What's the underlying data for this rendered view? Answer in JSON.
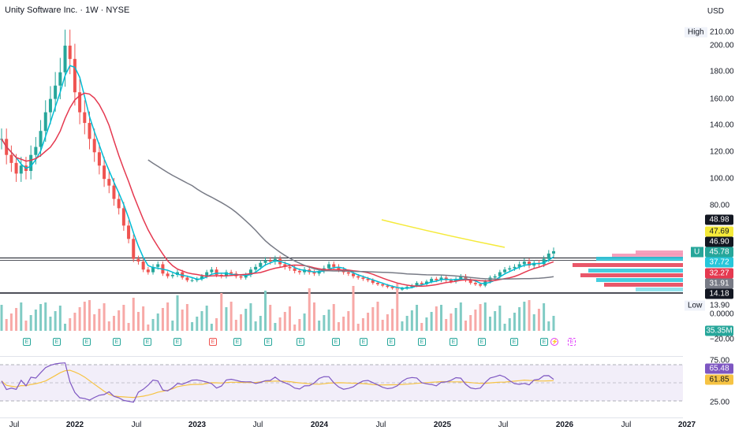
{
  "header": {
    "title": "Unity Software Inc. · 1W · NYSE",
    "currency": "USD"
  },
  "price_axis": {
    "ticks": [
      "210.00",
      "200.00",
      "180.00",
      "160.00",
      "140.00",
      "120.00",
      "100.00",
      "80.00",
      "0.0000",
      "−20.00"
    ],
    "high_label": "High",
    "low_label": "Low",
    "low_value": "13.90",
    "u_badge": "U",
    "tags": {
      "t4898": "48.98",
      "t4769": "47.69",
      "t4690": "46.90",
      "t4578": "45.78",
      "t3772": "37.72",
      "t3227": "32.27",
      "t3191": "31.91",
      "t1418": "14.18",
      "vol": "35.35M"
    }
  },
  "rsi_axis": {
    "ticks": [
      "75.00",
      "25.00"
    ],
    "rsi_value": "65.48",
    "ma_value": "61.85"
  },
  "time_axis": {
    "labels": [
      "Jul",
      "2022",
      "Jul",
      "2023",
      "Jul",
      "2024",
      "Jul",
      "2025",
      "Jul",
      "2026",
      "Jul",
      "2027"
    ]
  },
  "earnings": {
    "E": "E",
    "D": "⚡"
  },
  "colors": {
    "up": "#26a69a",
    "down": "#ef5350",
    "ma_short": "#00bcd4",
    "ma_mid": "#e53950",
    "ma_long": "#787b86",
    "rsi": "#7e57c2",
    "rsi_ma": "#f6c343",
    "yellow_line": "#f5ea3a"
  }
}
